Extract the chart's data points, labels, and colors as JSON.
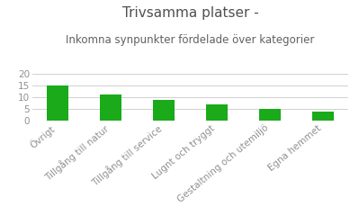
{
  "title_line1": "Trivsamma platser -",
  "title_line2": "Inkomna synpunkter fördelade över kategorier",
  "categories": [
    "Övrigt",
    "Tillgång till natur",
    "Tillgång till service",
    "Lugnt och tryggt",
    "Gestaltning och utemiljö",
    "Egna hemmet"
  ],
  "values": [
    15,
    11,
    9,
    7,
    5,
    4
  ],
  "bar_color": "#1aaa1a",
  "ylim": [
    0,
    20
  ],
  "yticks": [
    0,
    5,
    10,
    15,
    20
  ],
  "background_color": "#ffffff",
  "grid_color": "#d0d0d0",
  "title_color": "#505050",
  "subtitle_color": "#606060",
  "tick_color": "#909090",
  "title_fontsize": 11,
  "subtitle_fontsize": 8.5,
  "tick_fontsize": 7.5
}
